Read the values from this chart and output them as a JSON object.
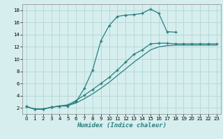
{
  "xlabel": "Humidex (Indice chaleur)",
  "background_color": "#d6eeee",
  "grid_color": "#b8d8d8",
  "line_color": "#2a8080",
  "line1_x": [
    0,
    1,
    2,
    3,
    4,
    5,
    6,
    7,
    8,
    9,
    10,
    11,
    12,
    13,
    14,
    15,
    16,
    17,
    18
  ],
  "line1_y": [
    2.2,
    1.8,
    1.8,
    2.1,
    2.3,
    2.3,
    3.0,
    5.2,
    8.2,
    13.0,
    15.5,
    17.0,
    17.2,
    17.3,
    17.5,
    18.2,
    17.5,
    14.5,
    14.4
  ],
  "line2_x": [
    0,
    1,
    2,
    3,
    4,
    5,
    6,
    7,
    8,
    9,
    10,
    11,
    12,
    13,
    14,
    15,
    16,
    17,
    18,
    19,
    20,
    21,
    22,
    23
  ],
  "line2_y": [
    2.2,
    1.8,
    1.8,
    2.1,
    2.3,
    2.5,
    3.2,
    4.1,
    5.0,
    6.0,
    7.0,
    8.2,
    9.5,
    10.8,
    11.5,
    12.5,
    12.6,
    12.6,
    12.5,
    12.5,
    12.5,
    12.5,
    12.5,
    12.5
  ],
  "line3_x": [
    0,
    1,
    2,
    3,
    4,
    5,
    6,
    7,
    8,
    9,
    10,
    11,
    12,
    13,
    14,
    15,
    16,
    17,
    18,
    19,
    20,
    21,
    22,
    23
  ],
  "line3_y": [
    2.2,
    1.8,
    1.8,
    2.1,
    2.3,
    2.4,
    2.8,
    3.5,
    4.3,
    5.2,
    6.2,
    7.3,
    8.4,
    9.5,
    10.5,
    11.5,
    12.0,
    12.2,
    12.3,
    12.3,
    12.3,
    12.3,
    12.3,
    12.3
  ],
  "xlim": [
    -0.5,
    23.5
  ],
  "ylim": [
    1,
    19
  ],
  "xticks": [
    0,
    1,
    2,
    3,
    4,
    5,
    6,
    7,
    8,
    9,
    10,
    11,
    12,
    13,
    14,
    15,
    16,
    17,
    18,
    19,
    20,
    21,
    22,
    23
  ],
  "yticks": [
    2,
    4,
    6,
    8,
    10,
    12,
    14,
    16,
    18
  ],
  "marker": "+"
}
